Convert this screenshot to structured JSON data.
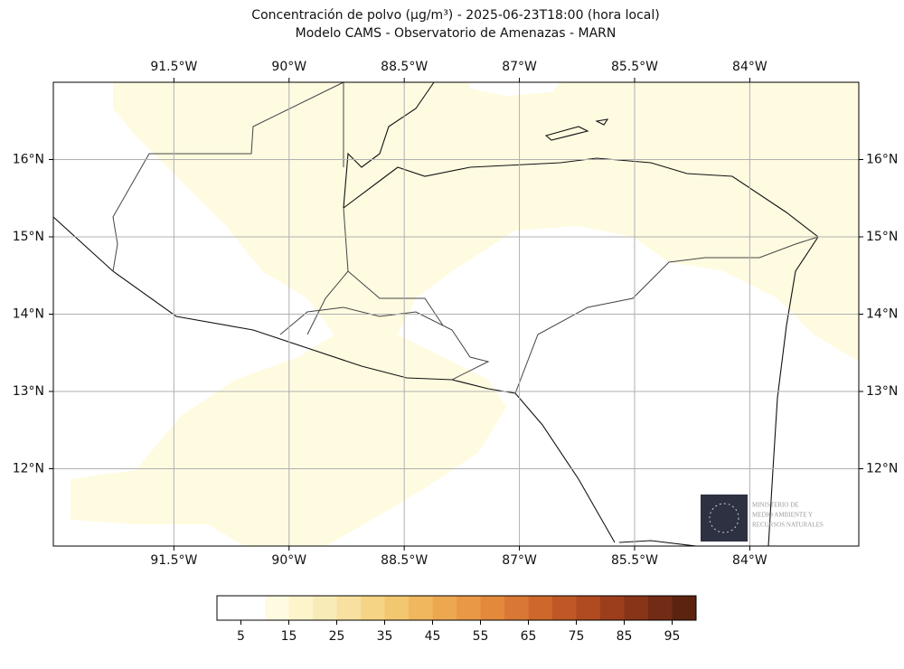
{
  "title": "Concentración de polvo (µg/m³) - 2025-06-23T18:00 (hora local)",
  "subtitle": "Modelo CAMS - Observatorio de Amenazas - MARN",
  "map": {
    "lonlim": [
      -93.07,
      -82.58
    ],
    "latlim": [
      11,
      17
    ],
    "grid": true,
    "lon_ticks": [
      {
        "value": -91.5,
        "label": "91.5°W"
      },
      {
        "value": -90,
        "label": "90°W"
      },
      {
        "value": -88.5,
        "label": "88.5°W"
      },
      {
        "value": -87,
        "label": "87°W"
      },
      {
        "value": -85.5,
        "label": "85.5°W"
      },
      {
        "value": -84,
        "label": "84°W"
      }
    ],
    "lat_ticks": [
      {
        "value": 16,
        "label": "16°N"
      },
      {
        "value": 15,
        "label": "15°N"
      },
      {
        "value": 14,
        "label": "14°N"
      },
      {
        "value": 13,
        "label": "13°N"
      },
      {
        "value": 12,
        "label": "12°N"
      }
    ]
  },
  "colorbar": {
    "boundaries": [
      0,
      10,
      15,
      20,
      25,
      30,
      35,
      40,
      45,
      50,
      55,
      60,
      65,
      70,
      75,
      80,
      85,
      90,
      95,
      100
    ],
    "colors": [
      "#ffffff",
      "#fffbe1",
      "#fdf4cc",
      "#f9ebb8",
      "#f7e0a0",
      "#f5d485",
      "#f3c670",
      "#f0b75e",
      "#eda84f",
      "#e99945",
      "#e2893b",
      "#d97834",
      "#cf672c",
      "#c05726",
      "#b04a20",
      "#9c3e1c",
      "#873418",
      "#722b14",
      "#5c2410"
    ],
    "ticks": [
      5,
      15,
      25,
      35,
      45,
      55,
      65,
      75,
      85,
      95
    ]
  },
  "logo": {
    "lines": [
      "MINISTERIO DE",
      "MEDIO AMBIENTE Y",
      "RECURSOS NATURALES"
    ]
  }
}
